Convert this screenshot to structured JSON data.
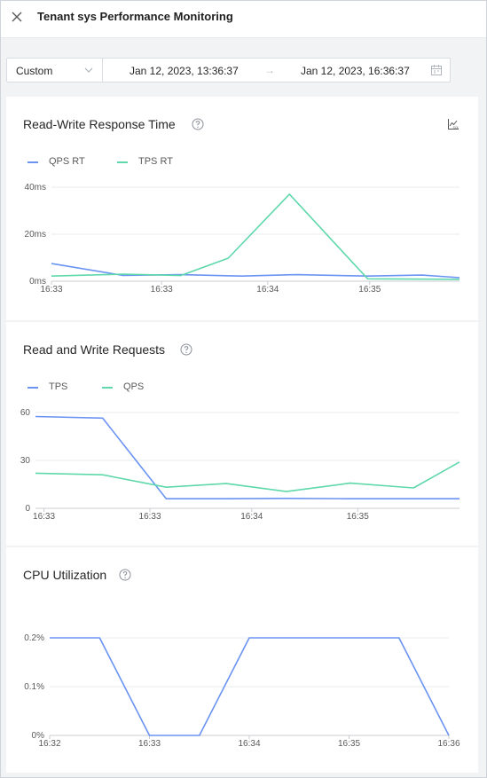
{
  "header": {
    "title": "Tenant sys Performance Monitoring",
    "close_icon": "close-icon"
  },
  "toolbar": {
    "range_type": "Custom",
    "start": "Jan 12, 2023, 13:36:37",
    "end": "Jan 12, 2023, 16:36:37",
    "separator": "→",
    "calendar_icon": "calendar-icon"
  },
  "colors": {
    "blue": "#6a93f2",
    "green": "#5fd8ab",
    "grid": "#e9ebef"
  },
  "charts": [
    {
      "title": "Read-Write Response Time",
      "help_icon": "question-icon",
      "sql_icon": "sql-chart-icon",
      "legend": [
        "QPS RT",
        "TPS RT"
      ],
      "y_ticks": [
        "0ms",
        "20ms",
        "40ms"
      ],
      "x_ticks": [
        "16:33",
        "16:33",
        "16:34",
        "16:35"
      ]
    },
    {
      "title": "Read and Write Requests",
      "help_icon": "question-icon",
      "legend": [
        "TPS",
        "QPS"
      ],
      "y_ticks": [
        "0",
        "30",
        "60"
      ],
      "x_ticks": [
        "16:33",
        "16:33",
        "16:34",
        "16:35"
      ]
    },
    {
      "title": "CPU Utilization",
      "help_icon": "question-icon",
      "legend": [],
      "y_ticks": [
        "0%",
        "0.1%",
        "0.2%"
      ],
      "x_ticks": [
        "16:32",
        "16:33",
        "16:34",
        "16:35",
        "16:36"
      ]
    }
  ],
  "chart_data": [
    {
      "type": "line",
      "title": "Read-Write Response Time",
      "ylim": [
        0,
        40
      ],
      "y_unit": "ms",
      "xlim": [
        0,
        12
      ],
      "series": [
        {
          "name": "QPS RT",
          "color": "#6a93f2",
          "points": [
            [
              0,
              7.5
            ],
            [
              2.1,
              2.5
            ],
            [
              3.8,
              2.8
            ],
            [
              5.6,
              2.2
            ],
            [
              7.2,
              2.8
            ],
            [
              9.3,
              2.2
            ],
            [
              10.9,
              2.6
            ],
            [
              12,
              1.5
            ]
          ]
        },
        {
          "name": "TPS RT",
          "color": "#5fd8ab",
          "points": [
            [
              0,
              2.2
            ],
            [
              2.1,
              3.0
            ],
            [
              3.8,
              2.4
            ],
            [
              5.2,
              9.8
            ],
            [
              7.0,
              37.0
            ],
            [
              9.3,
              1.0
            ],
            [
              12,
              0.8
            ]
          ]
        }
      ]
    },
    {
      "type": "line",
      "title": "Read and Write Requests",
      "ylim": [
        0,
        60
      ],
      "xlim": [
        0,
        12
      ],
      "series": [
        {
          "name": "TPS",
          "color": "#6a93f2",
          "points": [
            [
              0,
              57.5
            ],
            [
              1.9,
              56.5
            ],
            [
              3.7,
              6.0
            ],
            [
              5.4,
              6.0
            ],
            [
              7.1,
              6.2
            ],
            [
              8.9,
              6.0
            ],
            [
              12,
              6.0
            ]
          ]
        },
        {
          "name": "QPS",
          "color": "#5fd8ab",
          "points": [
            [
              0,
              22.0
            ],
            [
              1.9,
              21.0
            ],
            [
              3.7,
              13.2
            ],
            [
              5.4,
              15.5
            ],
            [
              7.1,
              10.5
            ],
            [
              8.9,
              15.8
            ],
            [
              10.7,
              12.8
            ],
            [
              12,
              29.0
            ]
          ]
        }
      ]
    },
    {
      "type": "line",
      "title": "CPU Utilization",
      "ylim": [
        0,
        0.2
      ],
      "y_unit": "%",
      "xlim": [
        0,
        4
      ],
      "series": [
        {
          "name": "",
          "color": "#6a93f2",
          "points": [
            [
              0,
              0.2
            ],
            [
              0.5,
              0.2
            ],
            [
              1,
              0
            ],
            [
              1.5,
              0
            ],
            [
              2,
              0.2
            ],
            [
              3.5,
              0.2
            ],
            [
              4,
              0
            ]
          ]
        }
      ]
    }
  ]
}
